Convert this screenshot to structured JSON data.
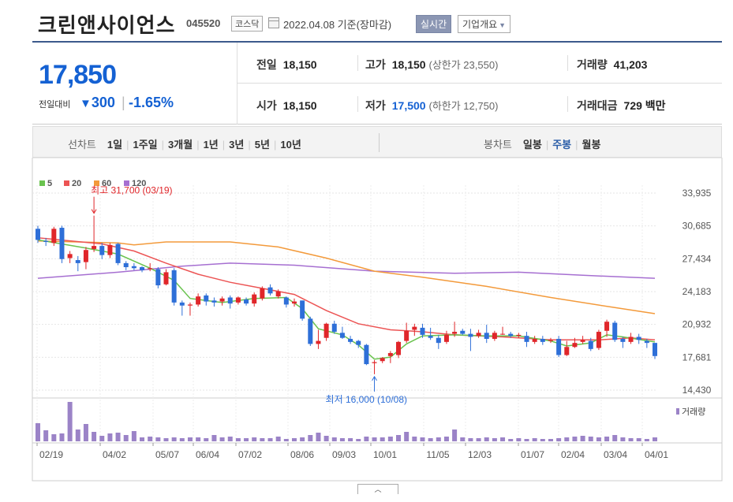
{
  "header": {
    "company": "크린앤사이언스",
    "code": "045520",
    "market": "코스닥",
    "date_text": "2022.04.08 기준(장마감)",
    "btn_realtime": "실시간",
    "btn_info": "기업개요",
    "icons": [
      "calendar-icon",
      "caret-down-icon"
    ]
  },
  "summary": {
    "price": "17,850",
    "change_label": "전일대비",
    "change_amount": "300",
    "change_pct": "-1.65%",
    "prev_close_label": "전일",
    "prev_close": "18,150",
    "high_label": "고가",
    "high": "18,150",
    "upper_limit": "(상한가 23,550)",
    "volume_label": "거래량",
    "volume": "41,203",
    "open_label": "시가",
    "open": "18,150",
    "low_label": "저가",
    "low": "17,500",
    "lower_limit": "(하한가 12,750)",
    "amount_label": "거래대금",
    "amount": "729 백만",
    "colors": {
      "down": "#1461d3",
      "up": "#e0262a"
    }
  },
  "toolbar": {
    "line_label": "선차트",
    "periods": [
      "1일",
      "1주일",
      "3개월",
      "1년",
      "3년",
      "5년",
      "10년"
    ],
    "candle_label": "봉차트",
    "candles": [
      "일봉",
      "주봉",
      "월봉"
    ],
    "active_candle": "주봉"
  },
  "chart_data": {
    "type": "candlestick",
    "interval": "weekly",
    "legend": [
      {
        "name": "5",
        "color": "#6ac34f"
      },
      {
        "name": "20",
        "color": "#ec5454"
      },
      {
        "name": "60",
        "color": "#f39a3b"
      },
      {
        "name": "120",
        "color": "#a66fd1"
      }
    ],
    "volume_legend": "거래량",
    "y_ticks": [
      "33,935",
      "30,685",
      "27,434",
      "24,183",
      "20,932",
      "17,681",
      "14,430"
    ],
    "ylim": [
      14430,
      33935
    ],
    "x_labels": [
      "02/19",
      "04/02",
      "05/07",
      "06/04",
      "07/02",
      "08/06",
      "09/03",
      "10/01",
      "11/05",
      "12/03",
      "01/07",
      "02/04",
      "03/04",
      "04/01"
    ],
    "annotations": {
      "high": "최고 31,700 (03/19)",
      "low": "최저 16,000 (10/08)"
    },
    "candles": [
      {
        "o": 30400,
        "c": 29300,
        "h": 30700,
        "l": 29000
      },
      {
        "o": 29200,
        "c": 29100,
        "h": 29500,
        "l": 28700
      },
      {
        "o": 29000,
        "c": 30400,
        "h": 30600,
        "l": 28700
      },
      {
        "o": 30500,
        "c": 27400,
        "h": 30700,
        "l": 27000
      },
      {
        "o": 27500,
        "c": 27900,
        "h": 28200,
        "l": 27000
      },
      {
        "o": 27300,
        "c": 27000,
        "h": 27700,
        "l": 26200
      },
      {
        "o": 27100,
        "c": 28300,
        "h": 28600,
        "l": 26400
      },
      {
        "o": 28400,
        "c": 28700,
        "h": 31700,
        "l": 28100
      },
      {
        "o": 28700,
        "c": 27800,
        "h": 29000,
        "l": 27400
      },
      {
        "o": 27800,
        "c": 28800,
        "h": 29000,
        "l": 27500
      },
      {
        "o": 28900,
        "c": 27000,
        "h": 29000,
        "l": 26800
      },
      {
        "o": 27000,
        "c": 26600,
        "h": 27200,
        "l": 26300
      },
      {
        "o": 26700,
        "c": 26500,
        "h": 27000,
        "l": 26300
      },
      {
        "o": 26600,
        "c": 26300,
        "h": 26700,
        "l": 26100
      },
      {
        "o": 26400,
        "c": 26500,
        "h": 27000,
        "l": 26200
      },
      {
        "o": 26400,
        "c": 24800,
        "h": 26600,
        "l": 24500
      },
      {
        "o": 24900,
        "c": 26100,
        "h": 26400,
        "l": 24800
      },
      {
        "o": 26300,
        "c": 23100,
        "h": 26500,
        "l": 22800
      },
      {
        "o": 23100,
        "c": 22800,
        "h": 23300,
        "l": 21800
      },
      {
        "o": 22800,
        "c": 22900,
        "h": 23100,
        "l": 21800
      },
      {
        "o": 22900,
        "c": 23700,
        "h": 24000,
        "l": 22700
      },
      {
        "o": 23800,
        "c": 23200,
        "h": 24000,
        "l": 22800
      },
      {
        "o": 23300,
        "c": 23100,
        "h": 23600,
        "l": 22700
      },
      {
        "o": 23200,
        "c": 23500,
        "h": 23700,
        "l": 22800
      },
      {
        "o": 23600,
        "c": 23000,
        "h": 23800,
        "l": 22500
      },
      {
        "o": 23100,
        "c": 23600,
        "h": 23700,
        "l": 22900
      },
      {
        "o": 23400,
        "c": 23000,
        "h": 23600,
        "l": 22800
      },
      {
        "o": 23000,
        "c": 23900,
        "h": 24100,
        "l": 22700
      },
      {
        "o": 23500,
        "c": 24500,
        "h": 24700,
        "l": 23300
      },
      {
        "o": 24600,
        "c": 24000,
        "h": 24900,
        "l": 23800
      },
      {
        "o": 23700,
        "c": 24200,
        "h": 24400,
        "l": 23500
      },
      {
        "o": 23600,
        "c": 22900,
        "h": 23700,
        "l": 22600
      },
      {
        "o": 23000,
        "c": 23200,
        "h": 23500,
        "l": 22700
      },
      {
        "o": 23300,
        "c": 21500,
        "h": 23300,
        "l": 21300
      },
      {
        "o": 21500,
        "c": 19000,
        "h": 21700,
        "l": 18800
      },
      {
        "o": 19000,
        "c": 19300,
        "h": 20400,
        "l": 18500
      },
      {
        "o": 19600,
        "c": 21000,
        "h": 21100,
        "l": 19300
      },
      {
        "o": 21000,
        "c": 20200,
        "h": 21300,
        "l": 20000
      },
      {
        "o": 20100,
        "c": 19600,
        "h": 20700,
        "l": 19500
      },
      {
        "o": 19500,
        "c": 19200,
        "h": 19800,
        "l": 19000
      },
      {
        "o": 19300,
        "c": 18900,
        "h": 19400,
        "l": 18600
      },
      {
        "o": 18900,
        "c": 17000,
        "h": 19000,
        "l": 16900
      },
      {
        "o": 17100,
        "c": 17200,
        "h": 17400,
        "l": 16000
      },
      {
        "o": 17300,
        "c": 17600,
        "h": 17700,
        "l": 17100
      },
      {
        "o": 17800,
        "c": 18100,
        "h": 18300,
        "l": 17100
      },
      {
        "o": 17900,
        "c": 19200,
        "h": 19300,
        "l": 17600
      },
      {
        "o": 19300,
        "c": 20300,
        "h": 21100,
        "l": 19100
      },
      {
        "o": 20400,
        "c": 20700,
        "h": 21000,
        "l": 19800
      },
      {
        "o": 20600,
        "c": 19900,
        "h": 21000,
        "l": 19600
      },
      {
        "o": 19800,
        "c": 19600,
        "h": 20600,
        "l": 19400
      },
      {
        "o": 19600,
        "c": 19100,
        "h": 19900,
        "l": 18500
      },
      {
        "o": 19200,
        "c": 19900,
        "h": 20300,
        "l": 19000
      },
      {
        "o": 20000,
        "c": 20200,
        "h": 21200,
        "l": 19700
      },
      {
        "o": 20300,
        "c": 20000,
        "h": 20500,
        "l": 19900
      },
      {
        "o": 20000,
        "c": 19700,
        "h": 20500,
        "l": 18300
      },
      {
        "o": 19800,
        "c": 20100,
        "h": 20400,
        "l": 19600
      },
      {
        "o": 20100,
        "c": 19500,
        "h": 20900,
        "l": 19100
      },
      {
        "o": 19500,
        "c": 20100,
        "h": 20300,
        "l": 19300
      },
      {
        "o": 20000,
        "c": 20000,
        "h": 20700,
        "l": 19900
      },
      {
        "o": 20000,
        "c": 19800,
        "h": 20200,
        "l": 19600
      },
      {
        "o": 19800,
        "c": 19900,
        "h": 20100,
        "l": 19600
      },
      {
        "o": 19800,
        "c": 19200,
        "h": 20200,
        "l": 18700
      },
      {
        "o": 19200,
        "c": 19500,
        "h": 19800,
        "l": 19000
      },
      {
        "o": 19500,
        "c": 19200,
        "h": 19800,
        "l": 18900
      },
      {
        "o": 19300,
        "c": 19400,
        "h": 19600,
        "l": 19100
      },
      {
        "o": 19500,
        "c": 17900,
        "h": 19800,
        "l": 17700
      },
      {
        "o": 17900,
        "c": 18700,
        "h": 19300,
        "l": 17800
      },
      {
        "o": 18700,
        "c": 19100,
        "h": 19600,
        "l": 18600
      },
      {
        "o": 19200,
        "c": 19400,
        "h": 19800,
        "l": 19000
      },
      {
        "o": 19300,
        "c": 18500,
        "h": 19600,
        "l": 18300
      },
      {
        "o": 18600,
        "c": 20200,
        "h": 20400,
        "l": 18400
      },
      {
        "o": 20300,
        "c": 21200,
        "h": 21400,
        "l": 19700
      },
      {
        "o": 21100,
        "c": 19400,
        "h": 21300,
        "l": 19200
      },
      {
        "o": 19500,
        "c": 19200,
        "h": 19700,
        "l": 18600
      },
      {
        "o": 19200,
        "c": 19700,
        "h": 20100,
        "l": 19000
      },
      {
        "o": 19700,
        "c": 19400,
        "h": 20000,
        "l": 19000
      },
      {
        "o": 19300,
        "c": 19100,
        "h": 19500,
        "l": 18600
      },
      {
        "o": 19100,
        "c": 17800,
        "h": 19100,
        "l": 17500
      }
    ],
    "ma5": [
      [
        0,
        29300
      ],
      [
        6,
        28500
      ],
      [
        10,
        27900
      ],
      [
        14,
        26500
      ],
      [
        17,
        25300
      ],
      [
        19,
        23500
      ],
      [
        23,
        23100
      ],
      [
        27,
        23500
      ],
      [
        31,
        23600
      ],
      [
        33,
        22500
      ],
      [
        35,
        20500
      ],
      [
        38,
        19900
      ],
      [
        40,
        18900
      ],
      [
        42,
        17500
      ],
      [
        44,
        17700
      ],
      [
        46,
        19000
      ],
      [
        48,
        19800
      ],
      [
        52,
        19900
      ],
      [
        56,
        19800
      ],
      [
        60,
        19800
      ],
      [
        64,
        19300
      ],
      [
        66,
        18800
      ],
      [
        69,
        19100
      ],
      [
        71,
        19900
      ],
      [
        73,
        19700
      ],
      [
        77,
        19200
      ]
    ],
    "ma20": [
      [
        0,
        29500
      ],
      [
        8,
        28900
      ],
      [
        12,
        28200
      ],
      [
        16,
        27000
      ],
      [
        20,
        25900
      ],
      [
        24,
        25100
      ],
      [
        28,
        24500
      ],
      [
        32,
        23900
      ],
      [
        36,
        22300
      ],
      [
        40,
        21000
      ],
      [
        44,
        20400
      ],
      [
        48,
        20200
      ],
      [
        52,
        19900
      ],
      [
        58,
        19700
      ],
      [
        64,
        19400
      ],
      [
        70,
        19400
      ],
      [
        74,
        19600
      ],
      [
        77,
        19400
      ]
    ],
    "ma60": [
      [
        0,
        29200
      ],
      [
        10,
        29000
      ],
      [
        12,
        28800
      ],
      [
        16,
        29100
      ],
      [
        24,
        29100
      ],
      [
        30,
        28600
      ],
      [
        36,
        27500
      ],
      [
        42,
        26200
      ],
      [
        48,
        25600
      ],
      [
        56,
        24700
      ],
      [
        64,
        23600
      ],
      [
        72,
        22600
      ],
      [
        77,
        22000
      ]
    ],
    "ma120": [
      [
        0,
        25500
      ],
      [
        10,
        26100
      ],
      [
        18,
        26700
      ],
      [
        24,
        27000
      ],
      [
        32,
        26800
      ],
      [
        42,
        26200
      ],
      [
        52,
        26000
      ],
      [
        60,
        26100
      ],
      [
        68,
        25800
      ],
      [
        77,
        25500
      ]
    ],
    "volume": [
      2.3,
      1.4,
      0.9,
      1.0,
      5.0,
      1.5,
      2.2,
      1.2,
      0.7,
      1.0,
      1.1,
      0.8,
      1.3,
      0.5,
      0.6,
      0.5,
      0.4,
      0.5,
      0.4,
      0.5,
      0.5,
      0.4,
      0.8,
      0.5,
      0.6,
      0.4,
      0.4,
      0.5,
      0.4,
      0.4,
      0.6,
      0.3,
      0.4,
      0.5,
      0.8,
      1.1,
      0.7,
      0.5,
      0.4,
      0.4,
      0.3,
      0.6,
      0.5,
      0.5,
      0.6,
      0.8,
      1.2,
      0.6,
      0.5,
      0.4,
      0.5,
      0.6,
      1.5,
      0.5,
      0.4,
      0.4,
      0.5,
      0.4,
      0.5,
      0.3,
      0.4,
      0.3,
      0.4,
      0.3,
      0.3,
      0.4,
      0.5,
      0.6,
      0.7,
      0.6,
      0.5,
      0.6,
      0.8,
      0.5,
      0.4,
      0.4,
      0.3,
      0.5
    ]
  }
}
